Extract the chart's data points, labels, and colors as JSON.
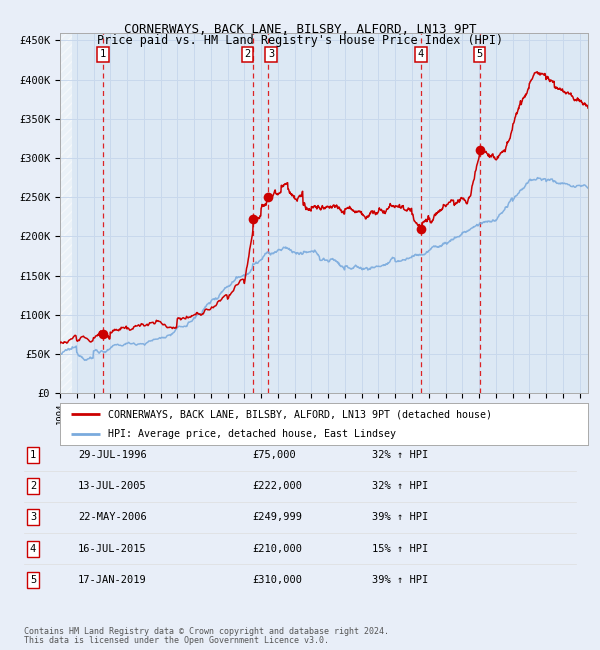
{
  "title1": "CORNERWAYS, BACK LANE, BILSBY, ALFORD, LN13 9PT",
  "title2": "Price paid vs. HM Land Registry's House Price Index (HPI)",
  "ylabel_ticks": [
    "£0",
    "£50K",
    "£100K",
    "£150K",
    "£200K",
    "£250K",
    "£300K",
    "£350K",
    "£400K",
    "£450K"
  ],
  "ytick_values": [
    0,
    50000,
    100000,
    150000,
    200000,
    250000,
    300000,
    350000,
    400000,
    450000
  ],
  "ylim": [
    0,
    460000
  ],
  "xlim_start": 1994.0,
  "xlim_end": 2025.5,
  "legend_line1": "CORNERWAYS, BACK LANE, BILSBY, ALFORD, LN13 9PT (detached house)",
  "legend_line2": "HPI: Average price, detached house, East Lindsey",
  "transactions": [
    {
      "num": 1,
      "date_num": 1996.57,
      "price": 75000,
      "label": "29-JUL-1996",
      "price_str": "£75,000",
      "hpi": "32% ↑ HPI"
    },
    {
      "num": 2,
      "date_num": 2005.53,
      "price": 222000,
      "label": "13-JUL-2005",
      "price_str": "£222,000",
      "hpi": "32% ↑ HPI"
    },
    {
      "num": 3,
      "date_num": 2006.39,
      "price": 249999,
      "label": "22-MAY-2006",
      "price_str": "£249,999",
      "hpi": "39% ↑ HPI"
    },
    {
      "num": 4,
      "date_num": 2015.53,
      "price": 210000,
      "label": "16-JUL-2015",
      "price_str": "£210,000",
      "hpi": "15% ↑ HPI"
    },
    {
      "num": 5,
      "date_num": 2019.04,
      "price": 310000,
      "label": "17-JAN-2019",
      "price_str": "£310,000",
      "hpi": "39% ↑ HPI"
    }
  ],
  "hpi_color": "#7aaadd",
  "price_color": "#cc0000",
  "vline_color": "#dd0000",
  "grid_color": "#c8d8ec",
  "bg_color": "#e8eef8",
  "plot_bg": "#dce8f4",
  "footer1": "Contains HM Land Registry data © Crown copyright and database right 2024.",
  "footer2": "This data is licensed under the Open Government Licence v3.0."
}
